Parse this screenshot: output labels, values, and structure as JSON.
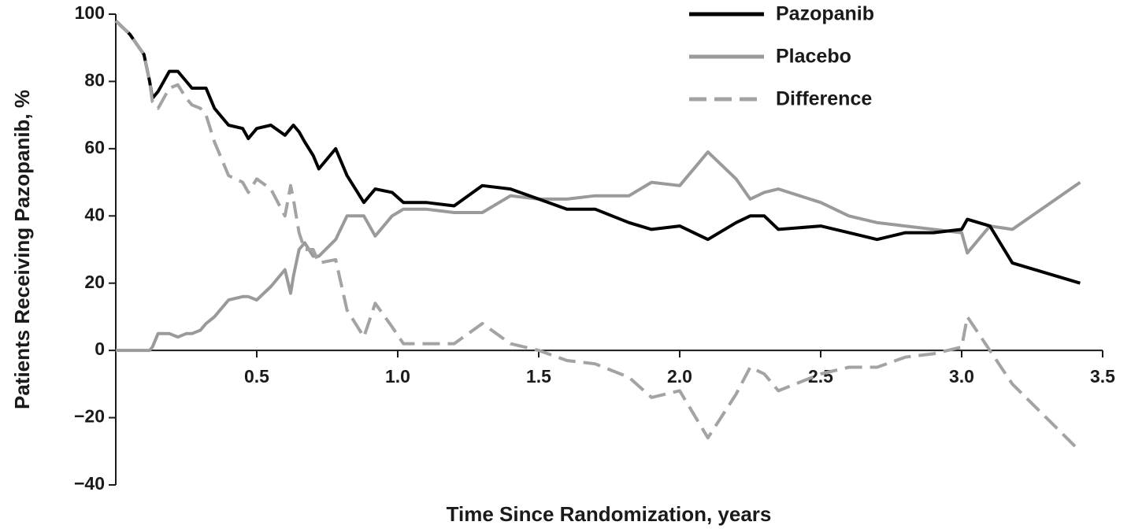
{
  "chart_data": {
    "type": "line",
    "x_label": "Time Since Randomization, years",
    "y_label": "Patients Receiving Pazopanib, %",
    "x": [
      0,
      0.05,
      0.1,
      0.12,
      0.13,
      0.15,
      0.17,
      0.19,
      0.22,
      0.25,
      0.27,
      0.3,
      0.32,
      0.35,
      0.4,
      0.45,
      0.47,
      0.5,
      0.55,
      0.6,
      0.62,
      0.63,
      0.65,
      0.67,
      0.7,
      0.72,
      0.78,
      0.82,
      0.88,
      0.92,
      0.98,
      1.02,
      1.1,
      1.2,
      1.3,
      1.4,
      1.5,
      1.6,
      1.7,
      1.82,
      1.9,
      2.0,
      2.1,
      2.2,
      2.25,
      2.3,
      2.35,
      2.5,
      2.6,
      2.7,
      2.8,
      2.9,
      3.0,
      3.02,
      3.1,
      3.18,
      3.42
    ],
    "series": [
      {
        "name": "Pazopanib",
        "color": "#000000",
        "dashed": false,
        "values": [
          98,
          94,
          88,
          80,
          75,
          77,
          80,
          83,
          83,
          80,
          78,
          78,
          78,
          72,
          67,
          66,
          63,
          66,
          67,
          64,
          66,
          67,
          65,
          62,
          58,
          54,
          60,
          52,
          44,
          48,
          47,
          44,
          44,
          43,
          49,
          48,
          45,
          42,
          42,
          38,
          36,
          37,
          33,
          38,
          40,
          40,
          36,
          37,
          35,
          33,
          35,
          35,
          36,
          39,
          37,
          26,
          20
        ]
      },
      {
        "name": "Placebo",
        "color": "#9a9a9a",
        "dashed": false,
        "values": [
          0,
          0,
          0,
          0,
          1,
          5,
          5,
          5,
          4,
          5,
          5,
          6,
          8,
          10,
          15,
          16,
          16,
          15,
          19,
          24,
          17,
          22,
          30,
          32,
          28,
          28,
          33,
          40,
          40,
          34,
          40,
          42,
          42,
          41,
          41,
          46,
          45,
          45,
          46,
          46,
          50,
          49,
          59,
          51,
          45,
          47,
          48,
          44,
          40,
          38,
          37,
          36,
          35,
          29,
          37,
          36,
          50
        ]
      },
      {
        "name": "Difference",
        "color": "#a3a3a3",
        "dashed": true,
        "values": [
          98,
          94,
          88,
          80,
          74,
          72,
          75,
          78,
          79,
          75,
          73,
          72,
          70,
          62,
          52,
          50,
          47,
          51,
          48,
          40,
          49,
          45,
          35,
          30,
          30,
          26,
          27,
          12,
          4,
          14,
          7,
          2,
          2,
          2,
          8,
          2,
          0,
          -3,
          -4,
          -8,
          -14,
          -12,
          -26,
          -13,
          -5,
          -7,
          -12,
          -7,
          -5,
          -5,
          -2,
          -1,
          1,
          10,
          0,
          -10,
          -30
        ]
      }
    ],
    "xlim": [
      0,
      3.5
    ],
    "xticks": [
      0.5,
      {
        "value": 1,
        "label": "1.0"
      },
      1.5,
      {
        "value": 2,
        "label": "2.0"
      },
      2.5,
      {
        "value": 3,
        "label": "3.0"
      },
      3.5
    ],
    "ylim": [
      -40,
      100
    ],
    "yticks": [
      {
        "value": -40,
        "label": "−40"
      },
      {
        "value": -20,
        "label": "−20"
      },
      0,
      20,
      40,
      60,
      80,
      100
    ],
    "grid": false,
    "legend": "upper right"
  }
}
